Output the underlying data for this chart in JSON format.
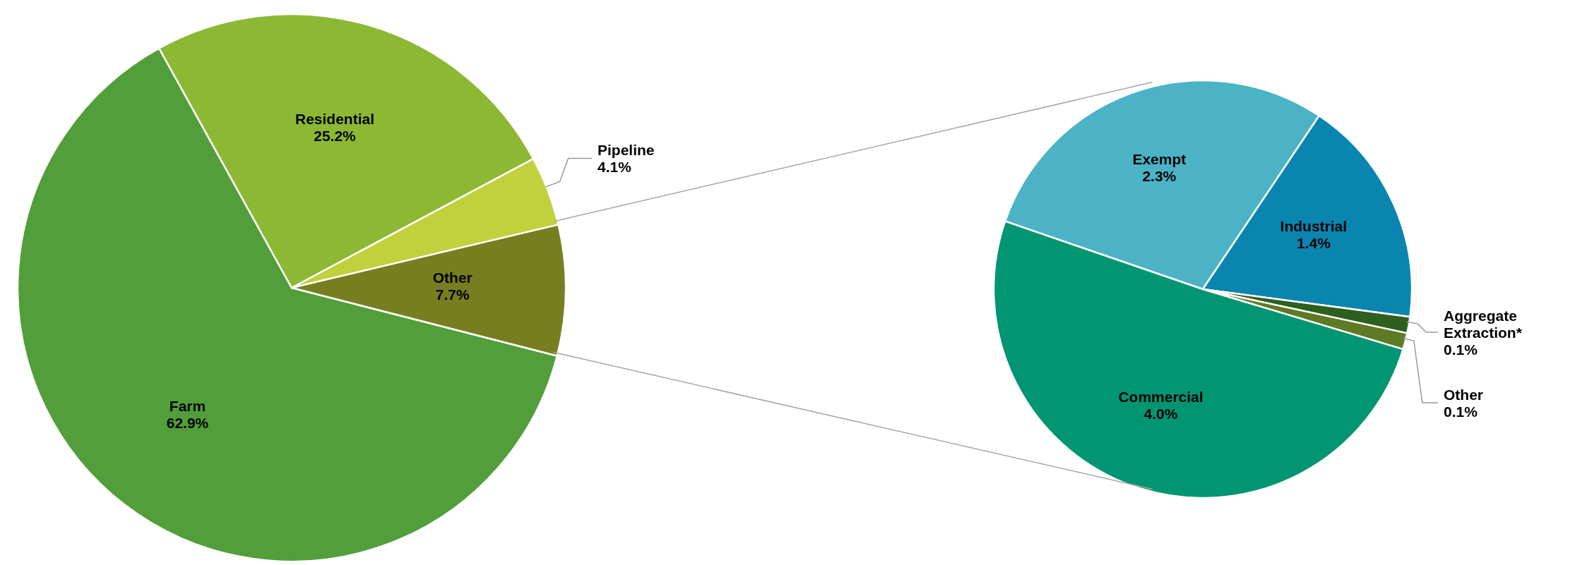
{
  "chart_data": [
    {
      "type": "pie",
      "categories": [
        "Farm",
        "Residential",
        "Pipeline",
        "Other"
      ],
      "values": [
        62.9,
        25.2,
        4.1,
        7.7
      ],
      "colors": [
        "#529e3a",
        "#8cb833",
        "#c1d13c",
        "#767e20"
      ],
      "value_labels": [
        "62.9%",
        "25.2%",
        "4.1%",
        "7.7%"
      ]
    },
    {
      "type": "pie",
      "categories": [
        "Exempt",
        "Industrial",
        "Aggregate Extraction*",
        "Other",
        "Commercial"
      ],
      "values": [
        2.3,
        1.4,
        0.1,
        0.1,
        4.0
      ],
      "colors": [
        "#4bb3c5",
        "#0a85b0",
        "#2f5f1e",
        "#5e7a25",
        "#029572"
      ],
      "value_labels": [
        "2.3%",
        "1.4%",
        "0.1%",
        "0.1%",
        "4.0%"
      ]
    }
  ]
}
